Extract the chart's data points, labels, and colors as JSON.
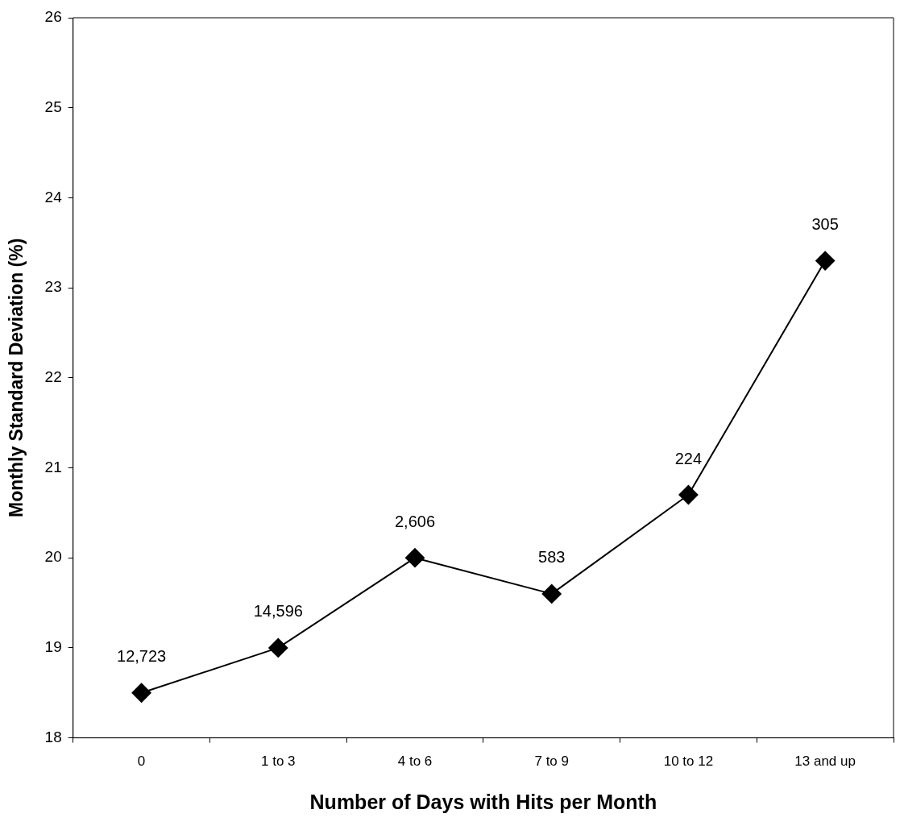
{
  "chart_data": {
    "type": "line",
    "xlabel": "Number of Days with Hits per Month",
    "ylabel": "Monthly Standard Deviation (%)",
    "categories": [
      "0",
      "1 to 3",
      "4 to 6",
      "7 to 9",
      "10 to 12",
      "13 and up"
    ],
    "series": [
      {
        "color": "#000000",
        "values": [
          18.5,
          19.0,
          20.0,
          19.6,
          20.7,
          23.3
        ]
      }
    ],
    "ylim": [
      18,
      26
    ],
    "yticks": [
      18,
      19,
      20,
      21,
      22,
      23,
      24,
      25,
      26
    ],
    "grid": false,
    "legend": false,
    "marker": "diamond",
    "line_style": "solid",
    "annotations": [
      {
        "text": "12,723",
        "x": "0",
        "y": 18.5
      },
      {
        "text": "14,596",
        "x": "1 to 3",
        "y": 19.0
      },
      {
        "text": "2,606",
        "x": "4 to 6",
        "y": 20.0
      },
      {
        "text": "583",
        "x": "7 to 9",
        "y": 19.6
      },
      {
        "text": "224",
        "x": "10 to 12",
        "y": 20.7
      },
      {
        "text": "305",
        "x": "13 and up",
        "y": 23.3
      }
    ]
  }
}
